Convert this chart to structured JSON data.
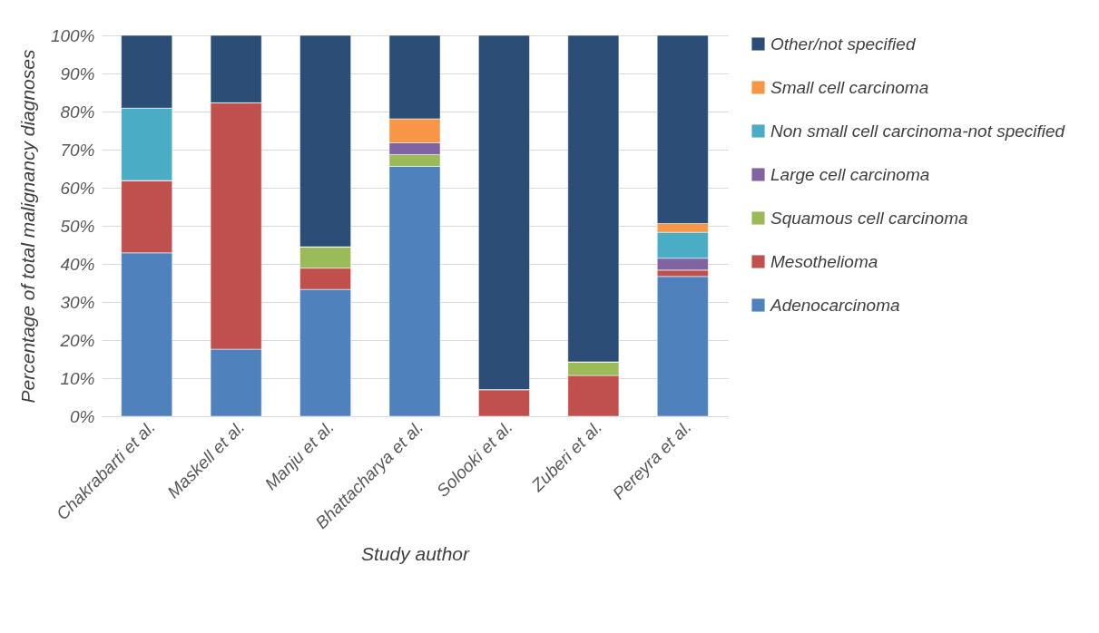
{
  "chart_data": {
    "type": "bar",
    "stacked": true,
    "xlabel": "Study author",
    "ylabel": "Percentage of total malignancy diagnoses",
    "categories": [
      "Chakrabarti et al.",
      "Maskell et al.",
      "Manju et al.",
      "Bhattacharya et al.",
      "Solooki et al.",
      "Zuberi et al.",
      "Pereyra et al."
    ],
    "series": [
      {
        "name": "Adenocarcinoma",
        "color": "#4f81bd",
        "values": [
          42.9,
          17.6,
          33.3,
          65.6,
          0,
          0,
          36.7
        ]
      },
      {
        "name": "Mesothelioma",
        "color": "#c0504d",
        "values": [
          19.0,
          64.7,
          5.6,
          0,
          7.0,
          10.7,
          1.7
        ]
      },
      {
        "name": "Squamous cell carcinoma",
        "color": "#9bbb59",
        "values": [
          0,
          0,
          5.6,
          3.1,
          0,
          3.6,
          0
        ]
      },
      {
        "name": "Large cell carcinoma",
        "color": "#8064a2",
        "values": [
          0,
          0,
          0,
          3.1,
          0,
          0,
          3.1
        ]
      },
      {
        "name": "Non small cell carcinoma-not specified",
        "color": "#4bacc6",
        "values": [
          19.0,
          0,
          0,
          0,
          0,
          0,
          6.8
        ]
      },
      {
        "name": "Small cell carcinoma",
        "color": "#f79646",
        "values": [
          0,
          0,
          0,
          6.3,
          0,
          0,
          2.3
        ]
      },
      {
        "name": "Other/not specified",
        "color": "#2c4d75",
        "values": [
          19.1,
          17.7,
          55.5,
          21.9,
          93.0,
          85.7,
          49.4
        ]
      }
    ],
    "ylim": [
      0,
      100
    ],
    "yticks": [
      {
        "value": 0,
        "label": "0%"
      },
      {
        "value": 10,
        "label": "10%"
      },
      {
        "value": 20,
        "label": "20%"
      },
      {
        "value": 30,
        "label": "30%"
      },
      {
        "value": 40,
        "label": "40%"
      },
      {
        "value": 50,
        "label": "50%"
      },
      {
        "value": 60,
        "label": "60%"
      },
      {
        "value": 70,
        "label": "70%"
      },
      {
        "value": 80,
        "label": "80%"
      },
      {
        "value": 90,
        "label": "90%"
      },
      {
        "value": 100,
        "label": "100%"
      }
    ],
    "grid": "y",
    "legend": "right"
  }
}
